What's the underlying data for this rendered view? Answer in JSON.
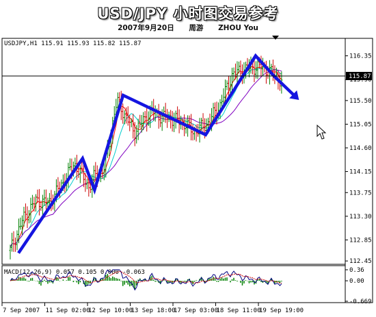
{
  "header": {
    "title": "USD/JPY 小时图交易参考",
    "date": "2007年9月20日",
    "author_cn": "周游",
    "author_en": "ZHOU You"
  },
  "chart_info": "USDJPY,H1  115.91 115.93 115.82 115.87",
  "current_price_label": "115.87",
  "macd": {
    "label": "MACD(12,26,9) 0.057 0.105 0.000 -0.063",
    "y_ticks": [
      "0.36",
      "0.00",
      "-0.669"
    ]
  },
  "colors": {
    "trend_arrow": "#1515e0",
    "bull_bar": "#008000",
    "bear_bar": "#cc0000",
    "ma_fast": "#ff0000",
    "ma_mid": "#00cccc",
    "ma_slow": "#8000c0",
    "histogram": "#008000",
    "signal": "#cc0000",
    "macd_line": "#000080"
  },
  "chart_data": {
    "type": "line",
    "symbol": "USDJPY",
    "timeframe": "H1",
    "y_ticks": [
      116.35,
      115.9,
      115.5,
      115.05,
      114.6,
      114.15,
      113.75,
      113.3,
      112.85,
      112.45
    ],
    "ylim": [
      112.4,
      116.5
    ],
    "x_ticks": [
      "7 Sep 2007",
      "11 Sep 02:00",
      "12 Sep 10:00",
      "13 Sep 18:00",
      "17 Sep 03:00",
      "18 Sep 11:00",
      "19 Sep 19:00"
    ],
    "current_price": 115.87,
    "trend_path_points": [
      {
        "x": 0.0,
        "y": 112.6
      },
      {
        "x": 1.5,
        "y": 114.4
      },
      {
        "x": 1.78,
        "y": 113.8
      },
      {
        "x": 2.45,
        "y": 115.6
      },
      {
        "x": 4.38,
        "y": 114.85
      },
      {
        "x": 5.55,
        "y": 116.35
      },
      {
        "x": 6.0,
        "y": 115.95
      },
      {
        "x": 6.45,
        "y": 115.6
      }
    ],
    "price_series": [
      {
        "x": 0.0,
        "y": 112.65
      },
      {
        "x": 0.3,
        "y": 113.25
      },
      {
        "x": 0.6,
        "y": 113.6
      },
      {
        "x": 0.9,
        "y": 113.55
      },
      {
        "x": 1.2,
        "y": 113.9
      },
      {
        "x": 1.5,
        "y": 114.3
      },
      {
        "x": 1.7,
        "y": 114.05
      },
      {
        "x": 1.85,
        "y": 113.85
      },
      {
        "x": 2.0,
        "y": 114.1
      },
      {
        "x": 2.2,
        "y": 114.2
      },
      {
        "x": 2.4,
        "y": 115.1
      },
      {
        "x": 2.5,
        "y": 115.5
      },
      {
        "x": 2.7,
        "y": 115.2
      },
      {
        "x": 2.9,
        "y": 114.9
      },
      {
        "x": 3.1,
        "y": 115.1
      },
      {
        "x": 3.3,
        "y": 115.3
      },
      {
        "x": 3.5,
        "y": 115.2
      },
      {
        "x": 3.8,
        "y": 115.15
      },
      {
        "x": 4.1,
        "y": 115.05
      },
      {
        "x": 4.3,
        "y": 114.9
      },
      {
        "x": 4.6,
        "y": 115.05
      },
      {
        "x": 4.9,
        "y": 115.4
      },
      {
        "x": 5.2,
        "y": 116.0
      },
      {
        "x": 5.5,
        "y": 116.1
      },
      {
        "x": 5.8,
        "y": 116.15
      },
      {
        "x": 6.1,
        "y": 116.05
      },
      {
        "x": 6.35,
        "y": 115.87
      }
    ],
    "macd_range": [
      -0.669,
      0.36
    ]
  }
}
